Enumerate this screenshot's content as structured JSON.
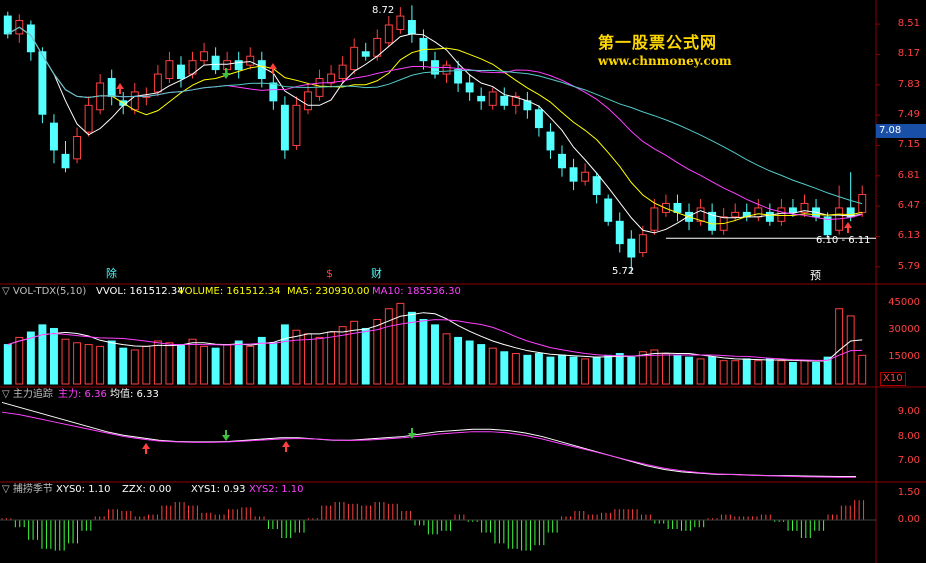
{
  "colors": {
    "up": "#ff4040",
    "down": "#54ffff",
    "ma_white": "#ffffff",
    "ma_yellow": "#ffff00",
    "ma_magenta": "#ff40ff",
    "ma_cyan": "#54c8c8",
    "grid_red": "#8b0000",
    "volume_down": "#54ffff",
    "osc_green": "#40ff40",
    "arrow_green": "#40c040"
  },
  "watermark": {
    "title": "第一股票公式网",
    "url": "www.chnmoney.com"
  },
  "price_axis": {
    "ticks": [
      "8.51",
      "8.17",
      "7.83",
      "7.49",
      "7.15",
      "6.81",
      "6.47",
      "6.13",
      "5.79"
    ],
    "current_price": "7.08"
  },
  "annotations": {
    "high_label": "8.72",
    "low_label": "5.72",
    "range_label": "6.10 - 6.11"
  },
  "events": [
    {
      "text": "除",
      "color": "#54ffff"
    },
    {
      "text": "$",
      "color": "#ff4040"
    },
    {
      "text": "财",
      "color": "#54ffff"
    },
    {
      "text": "预",
      "color": "#ffffff"
    }
  ],
  "volume_panel": {
    "name": "▽ VOL-TDX(5,10)",
    "vvol": "VVOL: 161512.34",
    "volume": "VOLUME: 161512.34",
    "ma5": "MA5: 230930.00",
    "ma10": "MA10: 185536.30",
    "ticks": [
      "45000",
      "30000",
      "15000"
    ],
    "unit": "X10"
  },
  "main_force_panel": {
    "name": "▽ 主力追踪",
    "zhuli": "主力: 6.36",
    "junzhi": "均值: 6.33",
    "ticks": [
      "9.00",
      "8.00",
      "7.00"
    ]
  },
  "season_panel": {
    "name": "▽ 捕捞季节",
    "xys0": "XYS0: 1.10",
    "zzx": "ZZX: 0.00",
    "xys1": "XYS1: 0.93",
    "xys2": "XYS2: 1.10",
    "ticks": [
      "1.50",
      "0.00"
    ]
  },
  "chart_data": {
    "type": "candlestick",
    "price_range": [
      5.62,
      8.78
    ],
    "candles": [
      [
        8.6,
        8.4,
        8.65,
        8.35
      ],
      [
        8.4,
        8.55,
        8.62,
        8.3
      ],
      [
        8.5,
        8.2,
        8.55,
        8.1
      ],
      [
        8.2,
        7.5,
        8.25,
        7.4
      ],
      [
        7.4,
        7.1,
        7.5,
        6.95
      ],
      [
        7.05,
        6.9,
        7.2,
        6.85
      ],
      [
        7.0,
        7.25,
        7.35,
        6.95
      ],
      [
        7.3,
        7.6,
        7.7,
        7.25
      ],
      [
        7.55,
        7.85,
        7.95,
        7.5
      ],
      [
        7.9,
        7.7,
        8.0,
        7.6
      ],
      [
        7.65,
        7.6,
        7.75,
        7.5
      ],
      [
        7.55,
        7.75,
        7.85,
        7.5
      ],
      [
        7.7,
        7.7,
        7.8,
        7.6
      ],
      [
        7.75,
        7.95,
        8.05,
        7.7
      ],
      [
        7.9,
        8.1,
        8.2,
        7.85
      ],
      [
        8.05,
        7.9,
        8.15,
        7.8
      ],
      [
        7.95,
        8.1,
        8.2,
        7.9
      ],
      [
        8.1,
        8.2,
        8.3,
        8.05
      ],
      [
        8.15,
        8.0,
        8.25,
        7.95
      ],
      [
        8.0,
        8.1,
        8.2,
        7.95
      ],
      [
        8.1,
        8.0,
        8.2,
        7.9
      ],
      [
        8.05,
        8.15,
        8.25,
        8.0
      ],
      [
        8.1,
        7.9,
        8.2,
        7.8
      ],
      [
        7.85,
        7.65,
        7.95,
        7.55
      ],
      [
        7.6,
        7.1,
        7.7,
        7.0
      ],
      [
        7.15,
        7.6,
        7.7,
        7.1
      ],
      [
        7.55,
        7.75,
        7.85,
        7.5
      ],
      [
        7.7,
        7.9,
        8.0,
        7.65
      ],
      [
        7.85,
        7.95,
        8.05,
        7.8
      ],
      [
        7.9,
        8.05,
        8.15,
        7.85
      ],
      [
        8.0,
        8.25,
        8.35,
        7.95
      ],
      [
        8.2,
        8.15,
        8.3,
        8.1
      ],
      [
        8.15,
        8.35,
        8.45,
        8.1
      ],
      [
        8.3,
        8.5,
        8.6,
        8.25
      ],
      [
        8.45,
        8.6,
        8.7,
        8.4
      ],
      [
        8.55,
        8.4,
        8.72,
        8.3
      ],
      [
        8.35,
        8.1,
        8.45,
        8.0
      ],
      [
        8.1,
        7.95,
        8.2,
        7.9
      ],
      [
        7.95,
        8.05,
        8.1,
        7.85
      ],
      [
        8.0,
        7.85,
        8.1,
        7.75
      ],
      [
        7.85,
        7.75,
        7.95,
        7.65
      ],
      [
        7.7,
        7.65,
        7.8,
        7.55
      ],
      [
        7.6,
        7.75,
        7.8,
        7.55
      ],
      [
        7.7,
        7.6,
        7.8,
        7.55
      ],
      [
        7.6,
        7.7,
        7.75,
        7.5
      ],
      [
        7.65,
        7.55,
        7.75,
        7.45
      ],
      [
        7.55,
        7.35,
        7.6,
        7.25
      ],
      [
        7.3,
        7.1,
        7.4,
        7.0
      ],
      [
        7.05,
        6.9,
        7.15,
        6.8
      ],
      [
        6.9,
        6.75,
        7.0,
        6.65
      ],
      [
        6.75,
        6.85,
        6.95,
        6.7
      ],
      [
        6.8,
        6.6,
        6.85,
        6.5
      ],
      [
        6.55,
        6.3,
        6.6,
        6.25
      ],
      [
        6.3,
        6.05,
        6.4,
        5.95
      ],
      [
        6.1,
        5.9,
        6.2,
        5.72
      ],
      [
        5.95,
        6.15,
        6.25,
        5.9
      ],
      [
        6.2,
        6.45,
        6.55,
        6.15
      ],
      [
        6.4,
        6.5,
        6.6,
        6.35
      ],
      [
        6.5,
        6.4,
        6.6,
        6.3
      ],
      [
        6.4,
        6.3,
        6.5,
        6.2
      ],
      [
        6.3,
        6.45,
        6.55,
        6.25
      ],
      [
        6.4,
        6.2,
        6.5,
        6.15
      ],
      [
        6.2,
        6.35,
        6.45,
        6.15
      ],
      [
        6.35,
        6.4,
        6.5,
        6.3
      ],
      [
        6.4,
        6.35,
        6.5,
        6.3
      ],
      [
        6.35,
        6.45,
        6.55,
        6.3
      ],
      [
        6.4,
        6.3,
        6.5,
        6.25
      ],
      [
        6.3,
        6.45,
        6.55,
        6.25
      ],
      [
        6.45,
        6.4,
        6.55,
        6.35
      ],
      [
        6.4,
        6.5,
        6.6,
        6.35
      ],
      [
        6.45,
        6.35,
        6.55,
        6.3
      ],
      [
        6.35,
        6.15,
        6.4,
        6.1
      ],
      [
        6.2,
        6.45,
        6.7,
        6.15
      ],
      [
        6.45,
        6.35,
        6.85,
        6.3
      ],
      [
        6.4,
        6.6,
        6.7,
        6.35
      ]
    ],
    "volume": [
      [
        220,
        1
      ],
      [
        260,
        0
      ],
      [
        290,
        1
      ],
      [
        330,
        1
      ],
      [
        310,
        1
      ],
      [
        250,
        0
      ],
      [
        230,
        0
      ],
      [
        220,
        0
      ],
      [
        210,
        0
      ],
      [
        240,
        1
      ],
      [
        200,
        1
      ],
      [
        190,
        0
      ],
      [
        210,
        0
      ],
      [
        240,
        0
      ],
      [
        230,
        0
      ],
      [
        220,
        1
      ],
      [
        250,
        0
      ],
      [
        210,
        0
      ],
      [
        200,
        1
      ],
      [
        220,
        0
      ],
      [
        240,
        1
      ],
      [
        210,
        0
      ],
      [
        260,
        1
      ],
      [
        230,
        1
      ],
      [
        330,
        1
      ],
      [
        300,
        0
      ],
      [
        280,
        0
      ],
      [
        260,
        0
      ],
      [
        290,
        0
      ],
      [
        320,
        0
      ],
      [
        350,
        0
      ],
      [
        310,
        1
      ],
      [
        360,
        0
      ],
      [
        420,
        0
      ],
      [
        450,
        0
      ],
      [
        400,
        1
      ],
      [
        360,
        1
      ],
      [
        330,
        1
      ],
      [
        280,
        0
      ],
      [
        260,
        1
      ],
      [
        240,
        1
      ],
      [
        220,
        1
      ],
      [
        200,
        0
      ],
      [
        180,
        1
      ],
      [
        170,
        0
      ],
      [
        160,
        1
      ],
      [
        170,
        1
      ],
      [
        150,
        1
      ],
      [
        160,
        1
      ],
      [
        150,
        1
      ],
      [
        140,
        0
      ],
      [
        150,
        1
      ],
      [
        160,
        1
      ],
      [
        170,
        1
      ],
      [
        150,
        1
      ],
      [
        180,
        0
      ],
      [
        190,
        0
      ],
      [
        170,
        0
      ],
      [
        160,
        1
      ],
      [
        150,
        1
      ],
      [
        140,
        0
      ],
      [
        150,
        1
      ],
      [
        130,
        0
      ],
      [
        130,
        0
      ],
      [
        140,
        1
      ],
      [
        130,
        0
      ],
      [
        140,
        1
      ],
      [
        130,
        0
      ],
      [
        120,
        1
      ],
      [
        130,
        0
      ],
      [
        120,
        1
      ],
      [
        150,
        1
      ],
      [
        420,
        0
      ],
      [
        380,
        0
      ],
      [
        160,
        0
      ]
    ],
    "main_force_white": [
      9.4,
      9.2,
      9.0,
      8.8,
      8.6,
      8.4,
      8.2,
      8.05,
      7.95,
      7.85,
      7.8,
      7.78,
      7.78,
      7.8,
      7.85,
      7.9,
      7.95,
      7.95,
      7.9,
      7.85,
      7.85,
      7.9,
      7.95,
      8.0,
      8.1,
      8.2,
      8.25,
      8.3,
      8.3,
      8.25,
      8.15,
      8.0,
      7.8,
      7.6,
      7.4,
      7.2,
      7.0,
      6.8,
      6.65,
      6.55,
      6.5,
      6.45,
      6.45,
      6.42,
      6.4,
      6.4,
      6.38,
      6.37,
      6.36,
      6.36
    ],
    "main_force_magenta": [
      9.0,
      8.9,
      8.75,
      8.6,
      8.45,
      8.3,
      8.15,
      8.0,
      7.9,
      7.82,
      7.78,
      7.76,
      7.76,
      7.78,
      7.82,
      7.86,
      7.9,
      7.92,
      7.9,
      7.86,
      7.84,
      7.86,
      7.9,
      7.95,
      8.02,
      8.1,
      8.15,
      8.2,
      8.2,
      8.15,
      8.05,
      7.9,
      7.72,
      7.55,
      7.38,
      7.2,
      7.02,
      6.85,
      6.7,
      6.6,
      6.52,
      6.47,
      6.44,
      6.41,
      6.39,
      6.37,
      6.35,
      6.34,
      6.33,
      6.33
    ],
    "season_bars": [
      0.1,
      -0.4,
      -1.1,
      -1.6,
      -1.7,
      -1.3,
      -0.6,
      0.2,
      0.6,
      0.5,
      0.2,
      0.3,
      0.8,
      1.0,
      0.8,
      0.4,
      0.3,
      0.6,
      0.7,
      0.2,
      -0.5,
      -1.0,
      -0.7,
      0.1,
      0.8,
      1.0,
      0.9,
      0.8,
      1.0,
      0.9,
      0.5,
      -0.3,
      -0.8,
      -0.6,
      0.3,
      -0.1,
      -0.7,
      -1.3,
      -1.6,
      -1.7,
      -1.4,
      -0.7,
      0.2,
      0.5,
      0.3,
      0.4,
      0.6,
      0.6,
      0.3,
      -0.2,
      -0.5,
      -0.6,
      -0.4,
      0.1,
      0.3,
      0.2,
      0.2,
      0.3,
      -0.1,
      -0.6,
      -1.0,
      -0.6,
      0.3,
      0.8,
      1.1
    ]
  }
}
